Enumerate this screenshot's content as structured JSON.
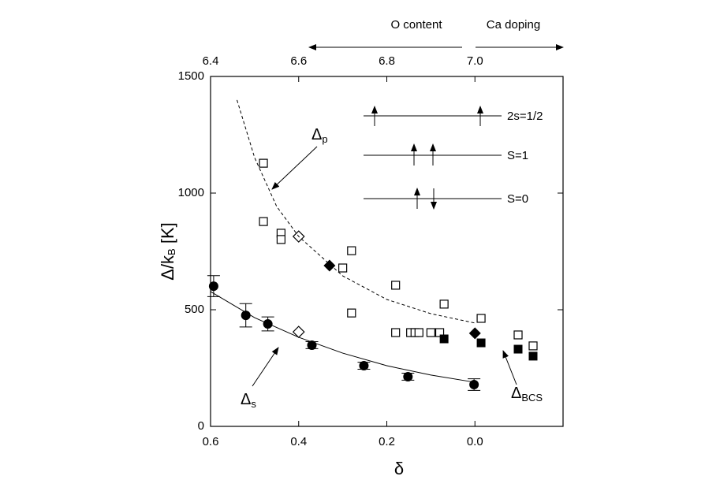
{
  "chart_data": {
    "type": "scatter",
    "xlabel": "δ",
    "ylabel": {
      "main": "Δ/k",
      "sub": "B",
      "tail": " [K]"
    },
    "xlim": [
      0.6,
      -0.2
    ],
    "xticks": [
      0.6,
      0.4,
      0.2,
      {
        "value": 0,
        "label": "0.0"
      }
    ],
    "x2lim": [
      6.4,
      7.2
    ],
    "x2ticks": [
      6.4,
      6.6,
      6.8,
      {
        "value": 7.0,
        "label": "7.0"
      }
    ],
    "ylim": [
      0,
      1500
    ],
    "yticks": [
      0,
      500,
      1000,
      1500
    ],
    "annotations": {
      "delta_p": {
        "symbol": "Δ",
        "sub": "p"
      },
      "delta_s": {
        "symbol": "Δ",
        "sub": "s"
      },
      "delta_bcs": {
        "symbol": "Δ",
        "sub": "BCS"
      },
      "o_content": "O content",
      "ca_doping": "Ca doping"
    },
    "spin_labels": [
      "2s=1/2",
      "S=1",
      "S=0"
    ],
    "series": [
      {
        "marker": "filled-circle",
        "color": "#000",
        "x": [
          0.593,
          0.52,
          0.47,
          0.37,
          0.252,
          0.152,
          0.002
        ],
        "values": [
          601,
          476,
          439,
          348,
          260,
          213,
          179
        ],
        "errors": [
          45,
          50,
          30,
          15,
          15,
          15,
          25
        ]
      },
      {
        "marker": "open-square",
        "color": "#000",
        "x": [
          0.48,
          0.48,
          0.44,
          0.44,
          0.3,
          0.28,
          0.28,
          0.18,
          0.07,
          -0.014,
          -0.098,
          -0.132,
          0.18,
          0.146,
          0.136,
          0.127,
          0.1,
          0.08
        ],
        "values": [
          1128,
          878,
          828,
          801,
          679,
          753,
          486,
          605,
          524,
          463,
          392,
          345,
          402,
          402,
          402,
          402,
          402,
          402
        ]
      },
      {
        "marker": "open-diamond",
        "color": "#000",
        "x": [
          0.4,
          0.4
        ],
        "values": [
          814,
          405
        ]
      },
      {
        "marker": "filled-diamond",
        "color": "#000",
        "x": [
          0.33,
          0.0
        ],
        "values": [
          689,
          399
        ]
      },
      {
        "marker": "filled-square",
        "color": "#000",
        "x": [
          0.07,
          -0.014,
          -0.098,
          -0.132
        ],
        "values": [
          375,
          358,
          331,
          301
        ]
      },
      {
        "marker": "solid-line",
        "color": "#000",
        "x": [
          0.6,
          0.5,
          0.4,
          0.3,
          0.2,
          0.1,
          0.0
        ],
        "values": [
          578,
          466,
          382,
          314,
          260,
          220,
          189
        ]
      },
      {
        "marker": "dashed-line",
        "color": "#000",
        "x": [
          0.54,
          0.5,
          0.45,
          0.4,
          0.3,
          0.2,
          0.1,
          0.0
        ],
        "values": [
          1399,
          1152,
          943,
          814,
          645,
          544,
          483,
          443
        ]
      }
    ]
  }
}
